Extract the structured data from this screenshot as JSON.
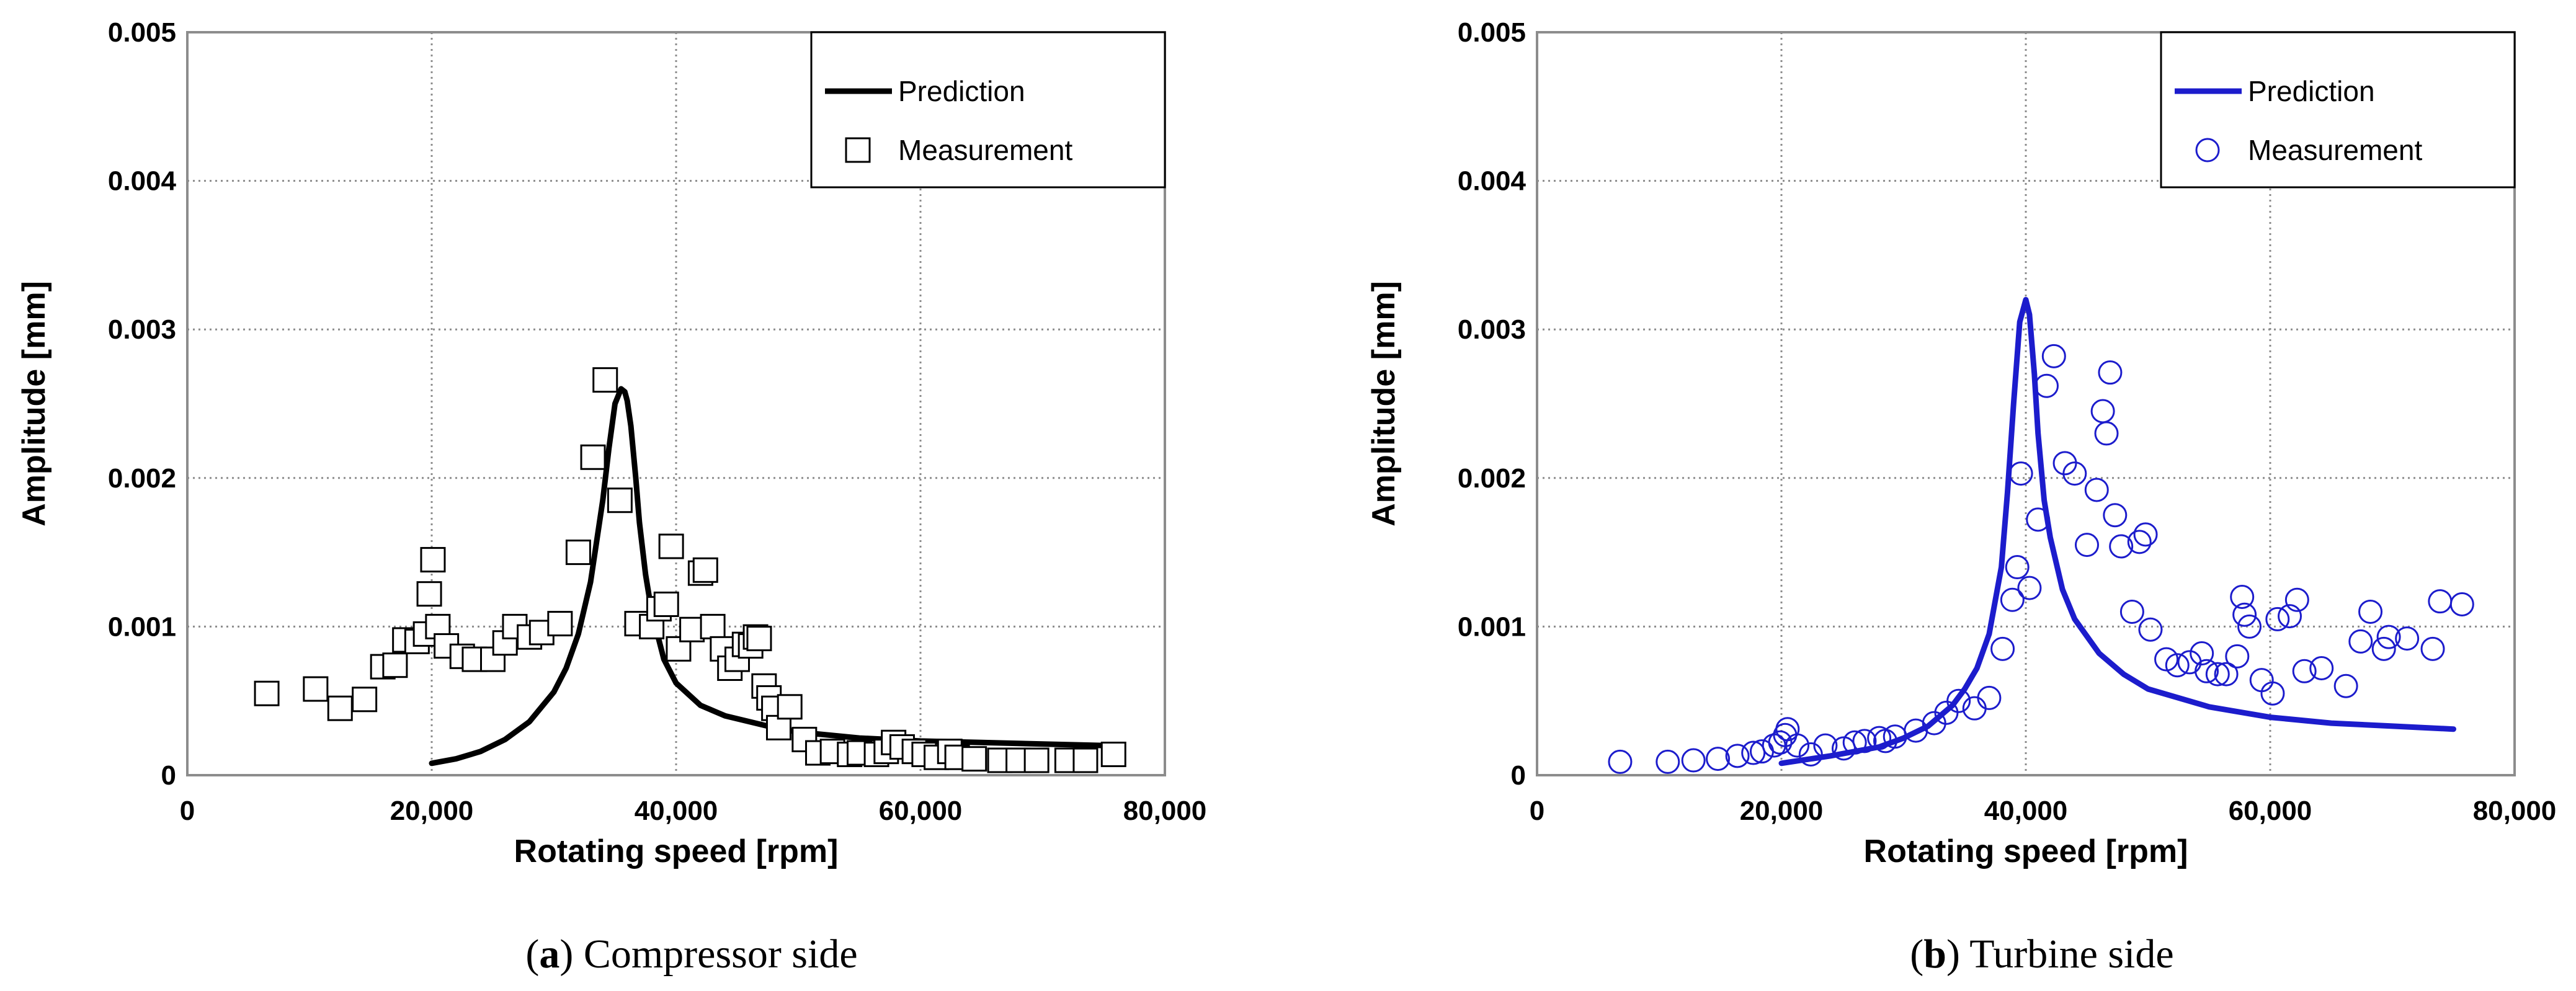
{
  "chart_data": [
    {
      "type": "scatter",
      "id": "a",
      "caption_letter": "a",
      "caption_text": ") Compressor side",
      "caption_open": "(",
      "xlabel": "Rotating speed [rpm]",
      "ylabel": "Amplitude [mm]",
      "xlim": [
        0,
        80000
      ],
      "ylim": [
        0,
        0.005
      ],
      "xticks": [
        0,
        20000,
        40000,
        60000,
        80000
      ],
      "xtick_labels": [
        "0",
        "20,000",
        "40,000",
        "60,000",
        "80,000"
      ],
      "yticks": [
        0,
        0.001,
        0.002,
        0.003,
        0.004,
        0.005
      ],
      "ytick_labels": [
        "0",
        "0.001",
        "0.002",
        "0.003",
        "0.004",
        "0.005"
      ],
      "grid": true,
      "legend_position": "top-right",
      "color": "#000000",
      "marker": "square",
      "series": [
        {
          "name": "Prediction",
          "kind": "line",
          "x": [
            20000,
            22000,
            24000,
            26000,
            28000,
            30000,
            31000,
            32000,
            33000,
            34000,
            34500,
            35000,
            35500,
            35800,
            36000,
            36300,
            36700,
            37000,
            37500,
            38000,
            39000,
            40000,
            42000,
            44000,
            46000,
            48000,
            50000,
            55000,
            60000,
            65000,
            70000,
            75000
          ],
          "y": [
            8e-05,
            0.00011,
            0.00016,
            0.00024,
            0.00036,
            0.00056,
            0.00072,
            0.00095,
            0.0013,
            0.00185,
            0.0022,
            0.0025,
            0.0026,
            0.00258,
            0.00252,
            0.00235,
            0.002,
            0.0017,
            0.00135,
            0.0011,
            0.00078,
            0.00062,
            0.00047,
            0.0004,
            0.00036,
            0.00032,
            0.00029,
            0.00025,
            0.00023,
            0.00022,
            0.00021,
            0.0002
          ]
        },
        {
          "name": "Measurement",
          "kind": "scatter",
          "x": [
            6500,
            10500,
            12500,
            14500,
            16000,
            17000,
            17800,
            18800,
            19500,
            19800,
            20100,
            20500,
            21200,
            22500,
            23500,
            25000,
            26000,
            26800,
            28000,
            29000,
            30500,
            32000,
            33200,
            34200,
            35400,
            36800,
            38000,
            38600,
            39200,
            39600,
            40200,
            41300,
            42000,
            42400,
            43000,
            43800,
            44400,
            45000,
            45600,
            46100,
            46500,
            46800,
            47200,
            47600,
            48000,
            48400,
            49300,
            50500,
            51600,
            52800,
            54200,
            55000,
            56400,
            57200,
            57800,
            58500,
            59500,
            60300,
            61300,
            62400,
            63000,
            64400,
            66500,
            68000,
            69500,
            72000,
            73500,
            75800
          ],
          "y": [
            0.00055,
            0.00058,
            0.00045,
            0.00051,
            0.00073,
            0.00074,
            0.00091,
            0.0009,
            0.00095,
            0.00122,
            0.00145,
            0.001,
            0.00087,
            0.0008,
            0.00078,
            0.00078,
            0.00089,
            0.001,
            0.00093,
            0.00096,
            0.00102,
            0.0015,
            0.00214,
            0.00266,
            0.00185,
            0.00102,
            0.001,
            0.00112,
            0.00115,
            0.00154,
            0.00085,
            0.00098,
            0.00136,
            0.00138,
            0.001,
            0.00085,
            0.00072,
            0.00078,
            0.00088,
            0.00087,
            0.00093,
            0.00092,
            0.0006,
            0.00052,
            0.00045,
            0.00032,
            0.00046,
            0.00024,
            0.00015,
            0.00016,
            0.00014,
            0.00015,
            0.00014,
            0.00016,
            0.00022,
            0.00019,
            0.00016,
            0.00014,
            0.00012,
            0.00016,
            0.00012,
            0.00011,
            0.0001,
            0.0001,
            0.0001,
            0.0001,
            0.0001,
            0.00014
          ]
        }
      ]
    },
    {
      "type": "scatter",
      "id": "b",
      "caption_letter": "b",
      "caption_text": ") Turbine side",
      "caption_open": "(",
      "xlabel": "Rotating speed [rpm]",
      "ylabel": "Amplitude [mm]",
      "xlim": [
        0,
        80000
      ],
      "ylim": [
        0,
        0.005
      ],
      "xticks": [
        0,
        20000,
        40000,
        60000,
        80000
      ],
      "xtick_labels": [
        "0",
        "20,000",
        "40,000",
        "60,000",
        "80,000"
      ],
      "yticks": [
        0,
        0.001,
        0.002,
        0.003,
        0.004,
        0.005
      ],
      "ytick_labels": [
        "0",
        "0.001",
        "0.002",
        "0.003",
        "0.004",
        "0.005"
      ],
      "grid": true,
      "legend_position": "top-right",
      "color": "#1c1ccc",
      "marker": "circle",
      "series": [
        {
          "name": "Prediction",
          "kind": "line",
          "x": [
            20000,
            24000,
            28000,
            30000,
            32000,
            34000,
            35000,
            36000,
            37000,
            38000,
            38500,
            39000,
            39500,
            40000,
            40300,
            40700,
            41000,
            41500,
            42000,
            43000,
            44000,
            46000,
            48000,
            50000,
            55000,
            60000,
            65000,
            70000,
            75000
          ],
          "y": [
            8e-05,
            0.00013,
            0.00019,
            0.00025,
            0.00033,
            0.00047,
            0.00058,
            0.00072,
            0.00095,
            0.0014,
            0.0019,
            0.0025,
            0.00305,
            0.0032,
            0.0031,
            0.0027,
            0.0023,
            0.00185,
            0.0016,
            0.00125,
            0.00105,
            0.00082,
            0.00068,
            0.00058,
            0.00046,
            0.00039,
            0.00035,
            0.00033,
            0.00031
          ]
        },
        {
          "name": "Measurement",
          "kind": "scatter",
          "x": [
            6800,
            10700,
            12800,
            14800,
            16400,
            17700,
            18400,
            19400,
            19900,
            20300,
            20500,
            21300,
            22400,
            23600,
            25100,
            26000,
            26800,
            28000,
            28500,
            29300,
            31000,
            32500,
            33500,
            34500,
            35800,
            37000,
            38100,
            38900,
            39300,
            39600,
            40300,
            41000,
            41700,
            42300,
            43200,
            44000,
            45000,
            45800,
            46300,
            46600,
            46900,
            47300,
            47800,
            48700,
            49300,
            49800,
            50200,
            51500,
            52400,
            53400,
            54400,
            54800,
            55700,
            56400,
            57300,
            57700,
            57900,
            58300,
            59300,
            60200,
            60600,
            61600,
            62200,
            62800,
            64200,
            66200,
            67400,
            68200,
            69300,
            69700,
            71200,
            73300,
            73900,
            75700
          ],
          "y": [
            9e-05,
            9e-05,
            0.0001,
            0.00011,
            0.00013,
            0.00015,
            0.00016,
            0.0002,
            0.00022,
            0.00027,
            0.00031,
            0.0002,
            0.00014,
            0.0002,
            0.00018,
            0.00022,
            0.00023,
            0.00025,
            0.00023,
            0.00026,
            0.0003,
            0.00035,
            0.00042,
            0.0005,
            0.00045,
            0.00052,
            0.00085,
            0.00118,
            0.0014,
            0.00203,
            0.00126,
            0.00172,
            0.00262,
            0.00282,
            0.0021,
            0.00203,
            0.00155,
            0.00192,
            0.00245,
            0.0023,
            0.00271,
            0.00175,
            0.00154,
            0.0011,
            0.00157,
            0.00162,
            0.00098,
            0.00078,
            0.00074,
            0.00076,
            0.00082,
            0.0007,
            0.00068,
            0.00068,
            0.0008,
            0.0012,
            0.00108,
            0.001,
            0.00064,
            0.00055,
            0.00105,
            0.00107,
            0.00118,
            0.0007,
            0.00072,
            0.0006,
            0.0009,
            0.0011,
            0.00085,
            0.00093,
            0.00092,
            0.00085,
            0.00117,
            0.00115
          ]
        }
      ]
    }
  ]
}
